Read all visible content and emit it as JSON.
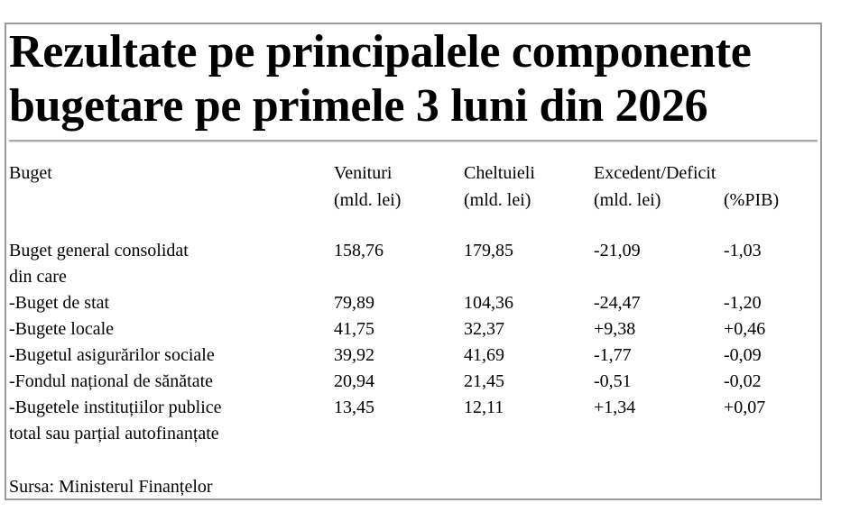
{
  "title_lines": [
    "Rezultate pe principalele componente",
    "bugetare pe primele 3 luni din 2026"
  ],
  "header": {
    "columns": [
      [
        "Buget"
      ],
      [
        "Venituri",
        "(mld. lei)"
      ],
      [
        "Cheltuieli",
        "(mld. lei)"
      ],
      [
        "Excedent/Deficit",
        "(mld. lei)"
      ]
    ],
    "pib_unit": "(%PIB)"
  },
  "table": {
    "rows": [
      [
        "Buget general consolidat",
        "158,76",
        "179,85",
        "-21,09",
        "-1,03"
      ],
      [
        "din care"
      ],
      [
        "-Buget de stat",
        "79,89",
        "104,36",
        "-24,47",
        "-1,20"
      ],
      [
        "-Bugete locale",
        "41,75",
        "32,37",
        "+9,38",
        "+0,46"
      ],
      [
        "-Bugetul asigurărilor sociale",
        "39,92",
        "41,69",
        "-1,77",
        "-0,09"
      ],
      [
        "-Fondul național de sănătate",
        "20,94",
        "21,45",
        "-0,51",
        "-0,02"
      ],
      [
        "-Bugetele instituțiilor publice",
        "13,45",
        "12,11",
        "+1,34",
        "+0,07"
      ],
      [
        "total sau parțial autofinanțate"
      ]
    ]
  },
  "source": "Sursa: Ministerul Finanțelor"
}
